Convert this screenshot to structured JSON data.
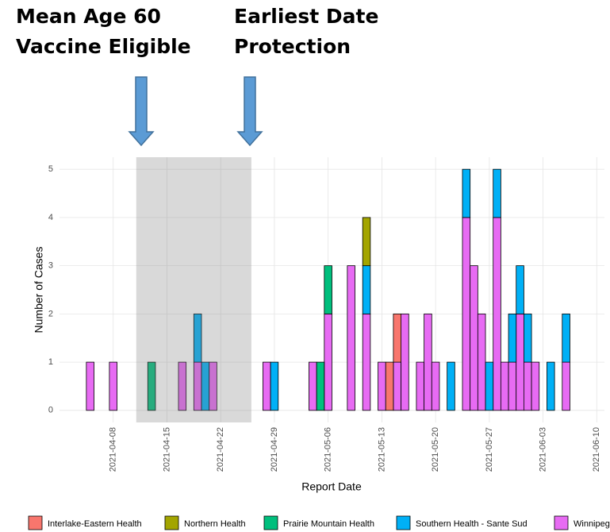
{
  "chart_data": {
    "type": "bar",
    "stacked": true,
    "annotations": [
      [
        "Mean Age 60",
        "Vaccine Eligible"
      ],
      [
        "Earliest Date",
        "Protection"
      ]
    ],
    "shaded_range": [
      "2021-04-11",
      "2021-04-26"
    ],
    "x_label": "Report Date",
    "y_label": "Number of Cases",
    "x": [
      "2021-04-05",
      "2021-04-08",
      "2021-04-13",
      "2021-04-17",
      "2021-04-19",
      "2021-04-20",
      "2021-04-21",
      "2021-04-28",
      "2021-04-29",
      "2021-05-04",
      "2021-05-05",
      "2021-05-06",
      "2021-05-09",
      "2021-05-11",
      "2021-05-13",
      "2021-05-14",
      "2021-05-15",
      "2021-05-16",
      "2021-05-18",
      "2021-05-19",
      "2021-05-20",
      "2021-05-22",
      "2021-05-24",
      "2021-05-25",
      "2021-05-26",
      "2021-05-27",
      "2021-05-28",
      "2021-05-29",
      "2021-05-30",
      "2021-05-31",
      "2021-06-01",
      "2021-06-02",
      "2021-06-04",
      "2021-06-06"
    ],
    "series": [
      {
        "name": "Interlake-Eastern Health",
        "color": "#F8766D",
        "values": [
          0,
          0,
          0,
          0,
          0,
          0,
          0,
          0,
          0,
          0,
          0,
          0,
          0,
          0,
          0,
          1,
          1,
          0,
          0,
          0,
          0,
          0,
          0,
          0,
          0,
          0,
          0,
          0,
          0,
          0,
          0,
          0,
          0,
          0
        ]
      },
      {
        "name": "Northern Health",
        "color": "#A3A500",
        "values": [
          0,
          0,
          0,
          0,
          0,
          0,
          0,
          0,
          0,
          0,
          0,
          0,
          0,
          1,
          0,
          0,
          0,
          0,
          0,
          0,
          0,
          0,
          0,
          0,
          0,
          0,
          0,
          0,
          0,
          0,
          0,
          0,
          0,
          0
        ]
      },
      {
        "name": "Prairie Mountain Health",
        "color": "#00BF7D",
        "values": [
          0,
          0,
          1,
          0,
          0,
          0,
          0,
          0,
          0,
          0,
          1,
          1,
          0,
          0,
          0,
          0,
          0,
          0,
          0,
          0,
          0,
          0,
          0,
          0,
          0,
          0,
          0,
          0,
          0,
          0,
          0,
          0,
          0,
          0
        ]
      },
      {
        "name": "Southern Health - Sante Sud",
        "color": "#00B0F6",
        "values": [
          0,
          0,
          0,
          0,
          1,
          1,
          0,
          0,
          1,
          0,
          0,
          0,
          0,
          1,
          0,
          0,
          0,
          0,
          0,
          0,
          0,
          1,
          1,
          0,
          0,
          1,
          1,
          0,
          1,
          1,
          1,
          0,
          1,
          1
        ]
      },
      {
        "name": "Winnipeg",
        "color": "#E76BF3",
        "values": [
          1,
          1,
          0,
          1,
          1,
          0,
          1,
          1,
          0,
          1,
          0,
          2,
          3,
          2,
          1,
          0,
          1,
          2,
          1,
          2,
          1,
          0,
          4,
          3,
          2,
          0,
          4,
          1,
          1,
          2,
          1,
          1,
          0,
          1
        ]
      }
    ],
    "xlim": [
      "2021-04-01",
      "2021-06-11"
    ],
    "xticks": [
      "2021-04-08",
      "2021-04-15",
      "2021-04-22",
      "2021-04-29",
      "2021-05-06",
      "2021-05-13",
      "2021-05-20",
      "2021-05-27",
      "2021-06-03",
      "2021-06-10"
    ],
    "ylim": [
      -0.25,
      5.25
    ],
    "yticks": [
      0,
      1,
      2,
      3,
      4,
      5
    ],
    "grid": true,
    "legend": "bottom"
  }
}
